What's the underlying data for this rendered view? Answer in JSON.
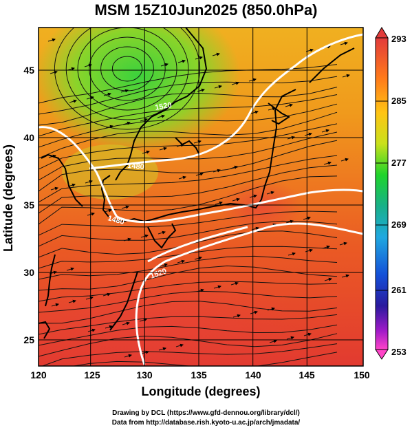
{
  "title": "MSM 15Z10Jun2025 (850.0hPa)",
  "x_axis_label": "Longitude (degrees)",
  "y_axis_label": "Latitude  (degrees)",
  "x_ticks": [
    "120",
    "125",
    "130",
    "135",
    "140",
    "145",
    "150"
  ],
  "y_ticks": [
    "25",
    "30",
    "35",
    "40",
    "45"
  ],
  "colorbar": {
    "ticks": [
      "293",
      "285",
      "277",
      "269",
      "261",
      "253"
    ],
    "colors": [
      "#e23b3b",
      "#ff7a1a",
      "#ffc414",
      "#c9e11c",
      "#1fd42b",
      "#18b089",
      "#20a8e0",
      "#1450d8",
      "#2a1a9e",
      "#a01ac8",
      "#ff44c8"
    ]
  },
  "contour_labels": [
    "1480",
    "1520",
    "1480",
    "1520"
  ],
  "credits": {
    "line1": "Drawing by DCL (https://www.gfd-dennou.org/library/dcl/)",
    "line2": "Data from http://database.rish.kyoto-u.ac.jp/arch/jmadata/"
  }
}
